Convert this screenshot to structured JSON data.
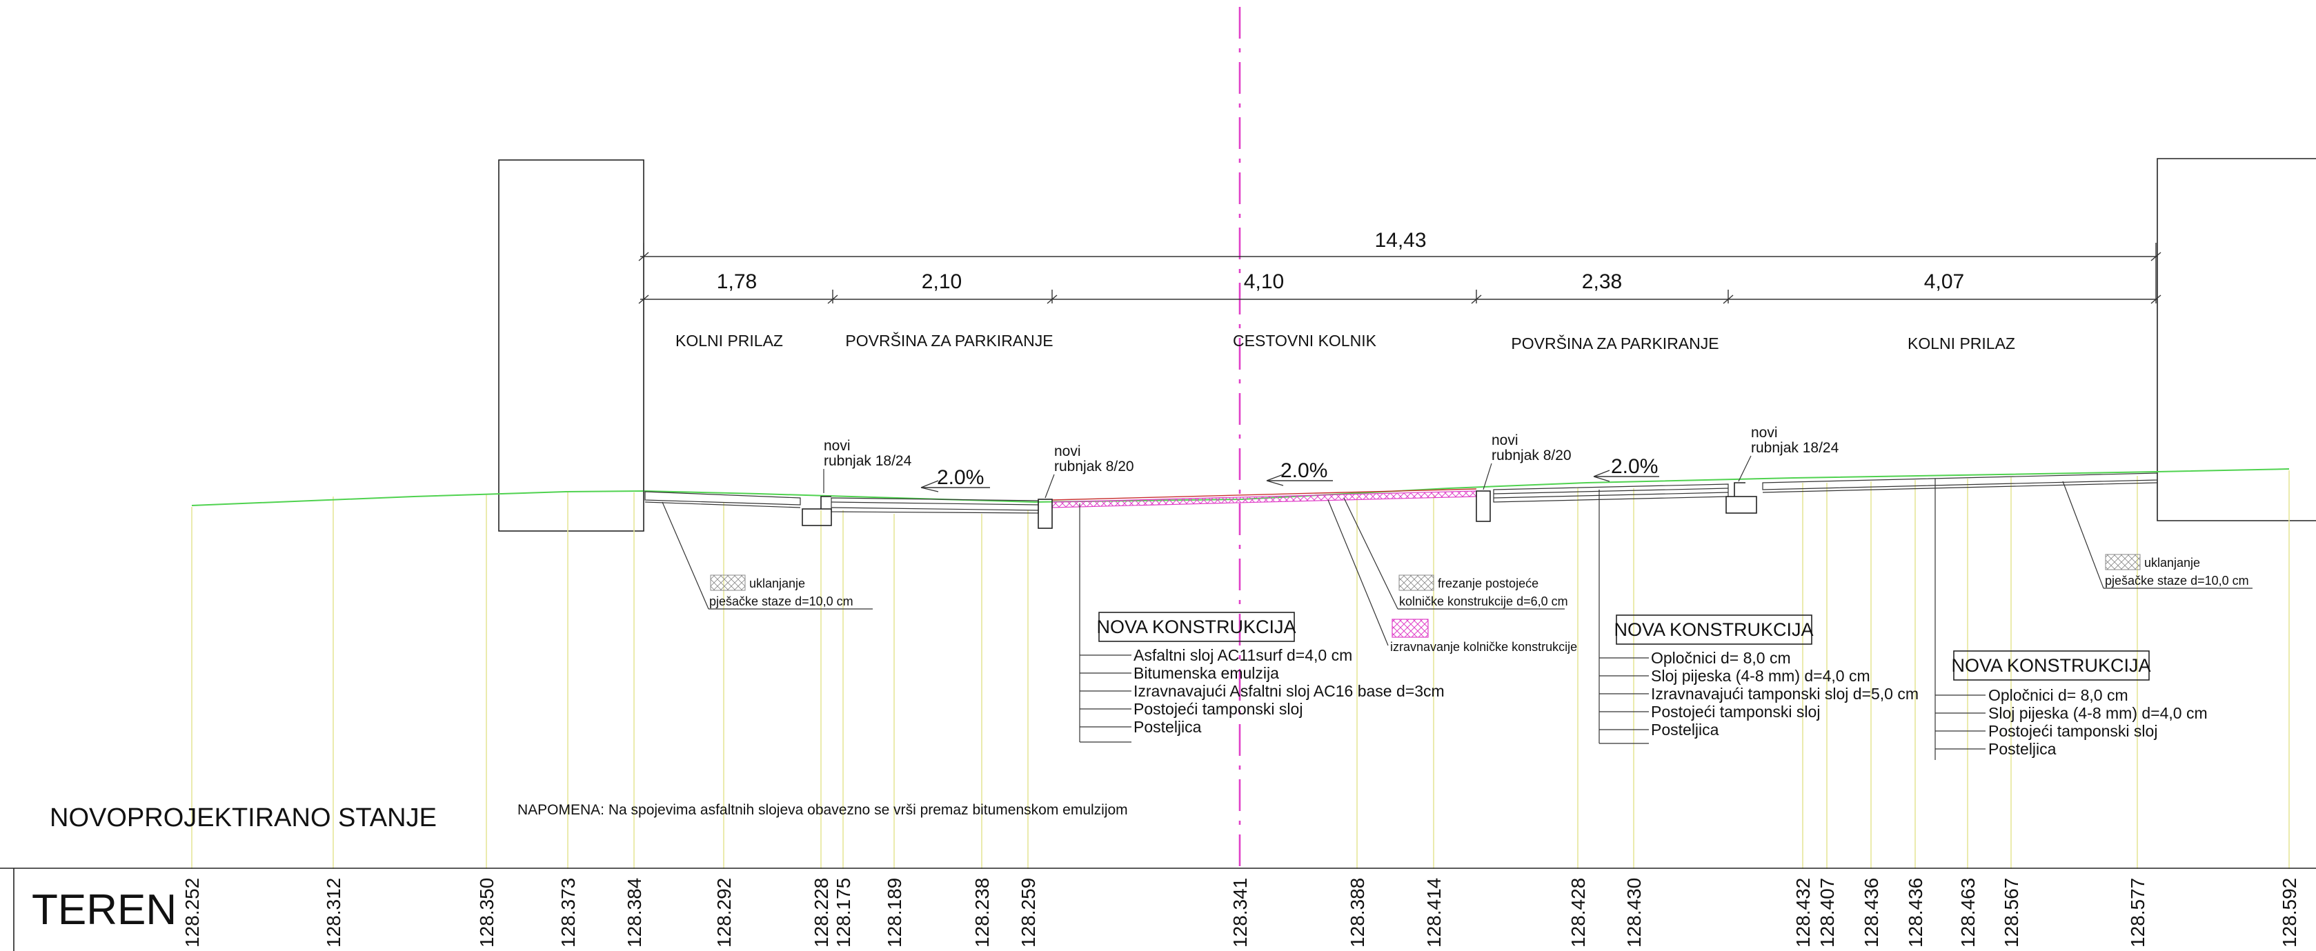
{
  "dimensions": {
    "total": "14,43",
    "segments": [
      "1,78",
      "2,10",
      "4,10",
      "2,38",
      "4,07"
    ]
  },
  "zones": [
    "KOLNI PRILAZ",
    "POVRŠINA ZA PARKIRANJE",
    "CESTOVNI KOLNIK",
    "POVRŠINA ZA PARKIRANJE",
    "KOLNI PRILAZ"
  ],
  "slopes": [
    "2.0%",
    "2.0%",
    "2.0%"
  ],
  "curb_labels": {
    "left_1824": [
      "novi",
      "rubnjak 18/24"
    ],
    "left_820": [
      "novi",
      "rubnjak 8/20"
    ],
    "right_820": [
      "novi",
      "rubnjak 8/20"
    ],
    "right_1824": [
      "novi",
      "rubnjak 18/24"
    ]
  },
  "legend": {
    "removal_left": [
      "uklanjanje",
      "pješačke staze d=10,0 cm"
    ],
    "removal_right": [
      "uklanjanje",
      "pješačke staze d=10,0 cm"
    ],
    "milling": [
      "frezanje postojeće",
      "kolničke konstrukcije d=6,0 cm"
    ],
    "leveling": "izravnavanje kolničke konstrukcije"
  },
  "constructions": [
    {
      "title": "NOVA KONSTRUKCIJA",
      "layers": [
        "Asfaltni sloj AC11surf d=4,0 cm",
        "Bitumenska emulzija",
        "Izravnavajući Asfaltni sloj AC16 base d=3cm",
        "Postojeći tamponski sloj",
        "Posteljica"
      ]
    },
    {
      "title": "NOVA KONSTRUKCIJA",
      "layers": [
        "Opločnici d= 8,0 cm",
        "Sloj pijeska (4-8 mm) d=4,0 cm",
        "Izravnavajući tamponski sloj d=5,0 cm",
        "Postojeći tamponski sloj",
        "Posteljica"
      ]
    },
    {
      "title": "NOVA KONSTRUKCIJA",
      "layers": [
        "Opločnici d= 8,0 cm",
        "Sloj pijeska (4-8 mm) d=4,0 cm",
        "Postojeći tamponski sloj",
        "Posteljica"
      ]
    }
  ],
  "section_title": "NOVOPROJEKTIRANO STANJE",
  "note": "NAPOMENA: Na spojevima asfaltnih slojeva obavezno se vrši premaz bitumenskom emulzijom",
  "terrain": {
    "label": "TEREN",
    "elevations": [
      "128.252",
      "128.312",
      "128.350",
      "128.373",
      "128.384",
      "128.292",
      "128.228",
      "128.175",
      "128.189",
      "128.238",
      "128.259",
      "128.341",
      "128.388",
      "128.414",
      "128.428",
      "128.430",
      "128.432",
      "128.407",
      "128.436",
      "128.436",
      "128.463",
      "128.567",
      "128.577",
      "128.592"
    ]
  },
  "colors": {
    "ground_line": "#4fd24f",
    "axis": "#e040c8",
    "leveling_hatch": "#e040c8",
    "station_lines": "#e6e69a"
  }
}
